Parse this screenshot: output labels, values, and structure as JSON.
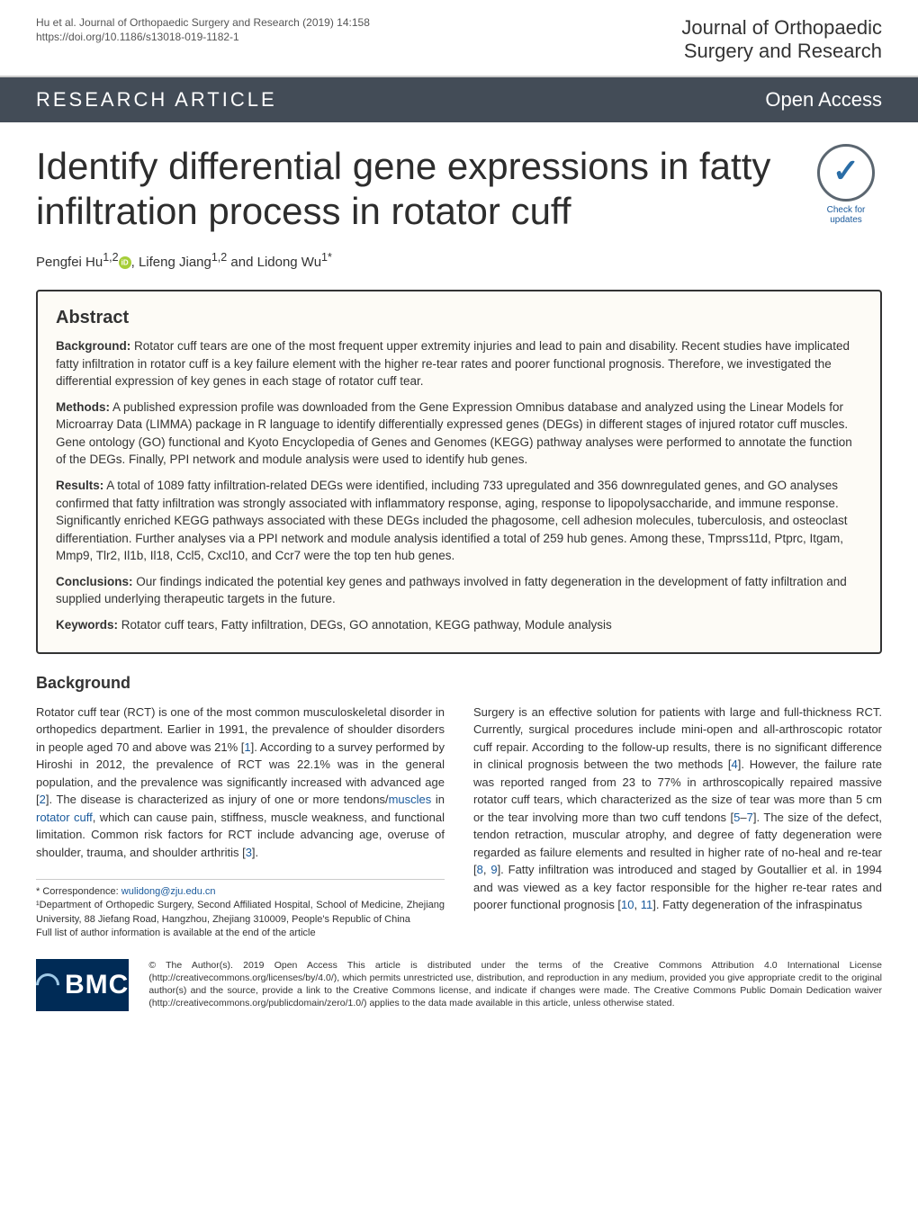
{
  "header": {
    "citation_line1": "Hu et al. Journal of Orthopaedic Surgery and Research        (2019) 14:158",
    "citation_line2": "https://doi.org/10.1186/s13018-019-1182-1",
    "journal_line1": "Journal of Orthopaedic",
    "journal_line2": "Surgery and Research"
  },
  "banner": {
    "left": "RESEARCH ARTICLE",
    "right": "Open Access"
  },
  "title": "Identify differential gene expressions in fatty infiltration process in rotator cuff",
  "check_badge": {
    "line1": "Check for",
    "line2": "updates"
  },
  "authors_html": "Pengfei Hu",
  "authors_sup1": "1,2",
  "authors_mid": ", Lifeng Jiang",
  "authors_sup2": "1,2",
  "authors_tail": " and Lidong Wu",
  "authors_sup3": "1*",
  "abstract": {
    "heading": "Abstract",
    "background": {
      "lead": "Background:",
      "text": " Rotator cuff tears are one of the most frequent upper extremity injuries and lead to pain and disability. Recent studies have implicated fatty infiltration in rotator cuff is a key failure element with the higher re-tear rates and poorer functional prognosis. Therefore, we investigated the differential expression of key genes in each stage of rotator cuff tear."
    },
    "methods": {
      "lead": "Methods:",
      "text": " A published expression profile was downloaded from the Gene Expression Omnibus database and analyzed using the Linear Models for Microarray Data (LIMMA) package in R language to identify differentially expressed genes (DEGs) in different stages of injured rotator cuff muscles. Gene ontology (GO) functional and Kyoto Encyclopedia of Genes and Genomes (KEGG) pathway analyses were performed to annotate the function of the DEGs. Finally, PPI network and module analysis were used to identify hub genes."
    },
    "results": {
      "lead": "Results:",
      "text": " A total of 1089 fatty infiltration-related DEGs were identified, including 733 upregulated and 356 downregulated genes, and GO analyses confirmed that fatty infiltration was strongly associated with inflammatory response, aging, response to lipopolysaccharide, and immune response. Significantly enriched KEGG pathways associated with these DEGs included the phagosome, cell adhesion molecules, tuberculosis, and osteoclast differentiation. Further analyses via a PPI network and module analysis identified a total of 259 hub genes. Among these, Tmprss11d, Ptprc, Itgam, Mmp9, Tlr2, Il1b, Il18, Ccl5, Cxcl10, and Ccr7 were the top ten hub genes."
    },
    "conclusions": {
      "lead": "Conclusions:",
      "text": " Our findings indicated the potential key genes and pathways involved in fatty degeneration in the development of fatty infiltration and supplied underlying therapeutic targets in the future."
    },
    "keywords": {
      "lead": "Keywords:",
      "text": " Rotator cuff tears, Fatty infiltration, DEGs, GO annotation, KEGG pathway, Module analysis"
    }
  },
  "background": {
    "heading": "Background",
    "left_p1a": "Rotator cuff tear (RCT) is one of the most common musculoskeletal disorder in orthopedics department. Earlier in 1991, the prevalence of shoulder disorders in people aged 70 and above was 21% [",
    "left_p1_ref1": "1",
    "left_p1b": "]. According to a survey performed by Hiroshi in 2012, the prevalence of RCT was 22.1% was in the general population, and the prevalence was significantly increased with advanced age [",
    "left_p1_ref2": "2",
    "left_p1c": "]. The disease is characterized as injury of one or more tendons/",
    "left_p1_link1": "muscles",
    "left_p1d": " in ",
    "left_p1_link2": "rotator cuff",
    "left_p1e": ", which can cause pain, stiffness, muscle weakness, and functional limitation. Common risk factors for RCT include advancing age, overuse of shoulder, trauma, and shoulder arthritis [",
    "left_p1_ref3": "3",
    "left_p1f": "].",
    "right_p1a": "Surgery is an effective solution for patients with large and full-thickness RCT. Currently, surgical procedures include mini-open and all-arthroscopic rotator cuff repair. According to the follow-up results, there is no significant difference in clinical prognosis between the two methods [",
    "right_ref4": "4",
    "right_p1b": "]. However, the failure rate was reported ranged from 23 to 77% in arthroscopically repaired massive rotator cuff tears, which characterized as the size of tear was more than 5 cm or the tear involving more than two cuff tendons [",
    "right_ref5": "5",
    "right_dash1": "–",
    "right_ref7": "7",
    "right_p1c": "]. The size of the defect, tendon retraction, muscular atrophy, and degree of fatty degeneration were regarded as failure elements and resulted in higher rate of no-heal and re-tear [",
    "right_ref8": "8",
    "right_comma": ", ",
    "right_ref9": "9",
    "right_p1d": "]. Fatty infiltration was introduced and staged by Goutallier et al. in 1994 and was viewed as a key factor responsible for the higher re-tear rates and poorer functional prognosis [",
    "right_ref10": "10",
    "right_comma2": ", ",
    "right_ref11": "11",
    "right_p1e": "]. Fatty degeneration of the infraspinatus"
  },
  "correspondence": {
    "star": "* Correspondence: ",
    "email": "wulidong@zju.edu.cn",
    "affil1": "¹Department of Orthopedic Surgery, Second Affiliated Hospital, School of Medicine, Zhejiang University, 88 Jiefang Road, Hangzhou, Zhejiang 310009, People's Republic of China",
    "full_list": "Full list of author information is available at the end of the article"
  },
  "footer": {
    "bmc": "BMC",
    "license": "© The Author(s). 2019 Open Access This article is distributed under the terms of the Creative Commons Attribution 4.0 International License (http://creativecommons.org/licenses/by/4.0/), which permits unrestricted use, distribution, and reproduction in any medium, provided you give appropriate credit to the original author(s) and the source, provide a link to the Creative Commons license, and indicate if changes were made. The Creative Commons Public Domain Dedication waiver (http://creativecommons.org/publicdomain/zero/1.0/) applies to the data made available in this article, unless otherwise stated."
  },
  "colors": {
    "banner_bg": "#434c57",
    "link": "#1a5a9c",
    "abstract_bg": "#fdfbf6",
    "bmc_bg": "#002b56"
  }
}
